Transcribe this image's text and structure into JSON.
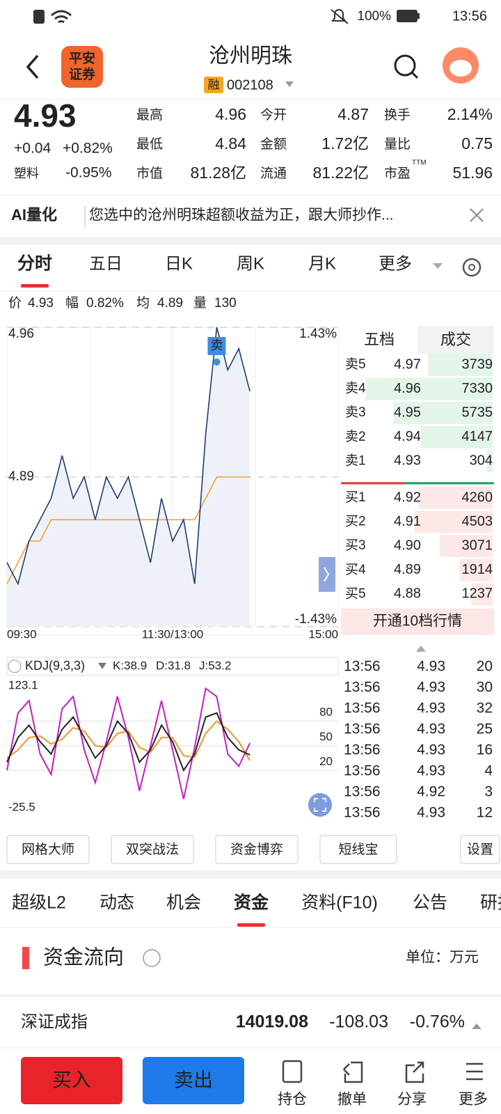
{
  "status": {
    "battery": "100%",
    "time": "13:56"
  },
  "header": {
    "logo_line1": "平安",
    "logo_line2": "证券",
    "title": "沧州明珠",
    "badge": "融",
    "code": "002108"
  },
  "quote": {
    "price": "4.93",
    "change": "+0.04",
    "change_pct": "+0.82%",
    "sector": "塑料",
    "sector_pct": "-0.95%",
    "up_color": "#e8312f",
    "down_color": "#1a9b5b",
    "stats": [
      {
        "label": "最高",
        "value": "4.96",
        "color": "#e8312f"
      },
      {
        "label": "今开",
        "value": "4.87",
        "color": "#1a9b5b"
      },
      {
        "label": "换手",
        "value": "2.14%",
        "color": "#222222"
      },
      {
        "label": "最低",
        "value": "4.84",
        "color": "#1a9b5b"
      },
      {
        "label": "金额",
        "value": "1.72亿",
        "color": "#222222"
      },
      {
        "label": "量比",
        "value": "0.75",
        "color": "#222222"
      },
      {
        "label": "市值",
        "value": "81.28亿",
        "color": "#222222"
      },
      {
        "label": "流通",
        "value": "81.22亿",
        "color": "#222222"
      },
      {
        "label": "市盈",
        "value": "51.96",
        "color": "#222222",
        "sup": "TTM"
      }
    ]
  },
  "ai_banner": {
    "label": "AI量化",
    "text": "您选中的沧州明珠超额收益为正，跟大师抄作..."
  },
  "period_tabs": [
    "分时",
    "五日",
    "日K",
    "周K",
    "月K",
    "更多"
  ],
  "info_line": {
    "price_label": "价",
    "price": "4.93",
    "amp_label": "幅",
    "amp": "0.82%",
    "avg_label": "均",
    "avg": "4.89",
    "vol_label": "量",
    "vol": "130"
  },
  "chart_data": [
    {
      "type": "line",
      "categories": [
        "09:30",
        null,
        null,
        null,
        null,
        null,
        null,
        null,
        null,
        null,
        null,
        null,
        null,
        null,
        null,
        "11:30/13:00",
        null,
        null,
        null,
        null,
        null,
        null,
        null,
        null,
        null,
        null,
        null,
        null,
        null,
        null,
        "15:00"
      ],
      "ylim": [
        4.82,
        4.96
      ],
      "yticks": [
        4.96,
        4.89,
        4.82
      ],
      "y2lim": [
        -1.43,
        1.43
      ],
      "y2ticks": [
        {
          "value": 1.43,
          "label": "1.43%"
        },
        {
          "value": -1.43,
          "label": "-1.43%"
        }
      ],
      "grid": true,
      "annotation": "卖",
      "series": [
        {
          "color": "#1d3b78",
          "values": [
            4.85,
            4.84,
            4.86,
            4.87,
            4.88,
            4.9,
            4.88,
            4.89,
            4.87,
            4.89,
            4.88,
            4.89,
            4.87,
            4.85,
            4.88,
            4.86,
            4.87,
            4.84,
            4.91,
            4.96,
            4.94,
            4.95,
            4.93,
            null,
            null,
            null,
            null,
            null,
            null,
            null,
            null
          ]
        },
        {
          "color": "#f0a030",
          "values": [
            4.84,
            4.85,
            4.86,
            4.86,
            4.87,
            4.87,
            4.87,
            4.87,
            4.87,
            4.87,
            4.87,
            4.87,
            4.87,
            4.87,
            4.87,
            4.87,
            4.87,
            4.87,
            4.88,
            4.89,
            4.89,
            4.89,
            4.89,
            null,
            null,
            null,
            null,
            null,
            null,
            null,
            null
          ]
        }
      ]
    },
    {
      "type": "line",
      "title": "KDJ(9,3,3)",
      "ylim": [
        -25.5,
        123.1
      ],
      "yticks": [
        123.1,
        80,
        50,
        20,
        -25.5
      ],
      "series": [
        {
          "name": "K",
          "legend_label": "K:38.9",
          "color": "#222222",
          "values": [
            30,
            60,
            75,
            55,
            40,
            70,
            85,
            60,
            35,
            50,
            80,
            65,
            30,
            45,
            75,
            55,
            20,
            40,
            85,
            90,
            60,
            45,
            38.9,
            null,
            null,
            null,
            null,
            null,
            null,
            null,
            null
          ]
        },
        {
          "name": "D",
          "legend_label": "D:31.8",
          "color": "#f0952a",
          "values": [
            35,
            45,
            60,
            62,
            52,
            58,
            72,
            68,
            50,
            48,
            65,
            68,
            48,
            42,
            60,
            60,
            38,
            36,
            65,
            80,
            70,
            55,
            31.8,
            null,
            null,
            null,
            null,
            null,
            null,
            null,
            null
          ]
        },
        {
          "name": "J",
          "legend_label": "J:53.2",
          "color": "#c21fc4",
          "values": [
            20,
            90,
            105,
            40,
            15,
            95,
            110,
            45,
            5,
            55,
            110,
            60,
            -5,
            50,
            105,
            45,
            -15,
            48,
            120,
            110,
            40,
            25,
            53.2,
            null,
            null,
            null,
            null,
            null,
            null,
            null,
            null
          ]
        }
      ]
    }
  ],
  "order_book": {
    "tabs": [
      "五档",
      "成交"
    ],
    "asks": [
      {
        "label": "卖5",
        "price": "4.97",
        "color": "#e8312f",
        "volume": 3739
      },
      {
        "label": "卖4",
        "price": "4.96",
        "color": "#e8312f",
        "volume": 7330
      },
      {
        "label": "卖3",
        "price": "4.95",
        "color": "#e8312f",
        "volume": 5735
      },
      {
        "label": "卖2",
        "price": "4.94",
        "color": "#e8312f",
        "volume": 4147
      },
      {
        "label": "卖1",
        "price": "4.93",
        "color": "#e8312f",
        "volume": 304
      }
    ],
    "bids": [
      {
        "label": "买1",
        "price": "4.92",
        "color": "#e8312f",
        "volume": 4260
      },
      {
        "label": "买2",
        "price": "4.91",
        "color": "#e8312f",
        "volume": 4503
      },
      {
        "label": "买3",
        "price": "4.90",
        "color": "#e8312f",
        "volume": 3071
      },
      {
        "label": "买4",
        "price": "4.89",
        "color": "#222222",
        "volume": 1914
      },
      {
        "label": "买5",
        "price": "4.88",
        "color": "#1a9b5b",
        "volume": 1237
      }
    ],
    "footer": "开通10档行情"
  },
  "trades": [
    {
      "time": "13:56",
      "price": "4.93",
      "volume": "20",
      "color": "#e8312f"
    },
    {
      "time": "13:56",
      "price": "4.93",
      "volume": "30",
      "color": "#e8312f"
    },
    {
      "time": "13:56",
      "price": "4.93",
      "volume": "32",
      "color": "#e8312f"
    },
    {
      "time": "13:56",
      "price": "4.93",
      "volume": "25",
      "color": "#e8312f"
    },
    {
      "time": "13:56",
      "price": "4.93",
      "volume": "16",
      "color": "#e8312f"
    },
    {
      "time": "13:56",
      "price": "4.93",
      "volume": "4",
      "color": "#e8312f"
    },
    {
      "time": "13:56",
      "price": "4.92",
      "volume": "3",
      "color": "#1a9b5b"
    },
    {
      "time": "13:56",
      "price": "4.93",
      "volume": "12",
      "color": "#e8312f"
    }
  ],
  "tools": [
    "网格大师",
    "双突战法",
    "资金博弈",
    "短线宝",
    "设置"
  ],
  "section_tabs": [
    "超级L2",
    "动态",
    "机会",
    "资金",
    "资料(F10)",
    "公告",
    "研报"
  ],
  "fund_flow": {
    "title": "资金流向",
    "unit": "单位：万元"
  },
  "index_bar": {
    "name": "深证成指",
    "value": "14019.08",
    "change": "-108.03",
    "pct": "-0.76%"
  },
  "bottom_bar": {
    "buy": "买入",
    "sell": "卖出",
    "actions": [
      "持仓",
      "撤单",
      "分享",
      "更多"
    ]
  }
}
